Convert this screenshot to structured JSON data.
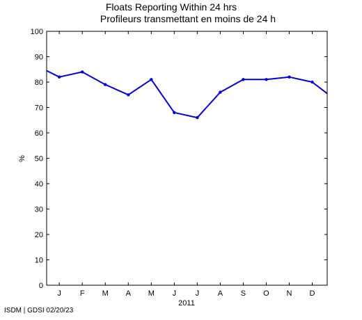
{
  "chart_data": {
    "type": "line",
    "title": "Floats Reporting Within 24 hrs",
    "subtitle": "Profileurs transmettant en moins de 24 h",
    "xlabel": "2011",
    "ylabel": "%",
    "categories": [
      "J",
      "F",
      "M",
      "A",
      "M",
      "J",
      "J",
      "A",
      "S",
      "O",
      "N",
      "D"
    ],
    "ylim": [
      0,
      100
    ],
    "yticks": [
      0,
      10,
      20,
      30,
      40,
      50,
      60,
      70,
      80,
      90,
      100
    ],
    "series": [
      {
        "color": "#0000dd",
        "values": [
          82,
          84,
          79,
          75,
          81,
          68,
          66,
          76,
          81,
          81,
          82,
          80
        ]
      }
    ],
    "left_edge_value": 84.5,
    "right_edge_value": 75.5,
    "grid": false,
    "footer": "ISDM | GDSI 02/20/23"
  }
}
